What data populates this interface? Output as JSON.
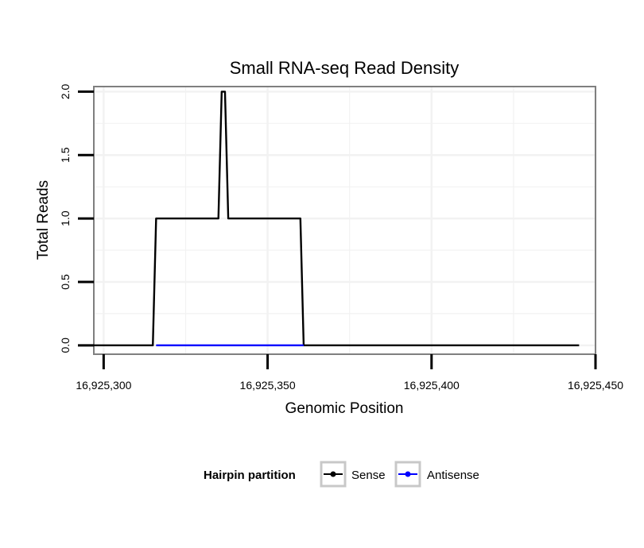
{
  "chart_data": {
    "type": "line",
    "title": "Small RNA-seq Read Density",
    "xlabel": "Genomic Position",
    "ylabel": "Total Reads",
    "xlim": [
      16925297,
      16925450
    ],
    "ylim": [
      -0.07,
      2.04
    ],
    "xticks": [
      16925300,
      16925350,
      16925400,
      16925450
    ],
    "xtick_labels": [
      "16,925,300",
      "16,925,350",
      "16,925,400",
      "16,925,450"
    ],
    "yticks": [
      0.0,
      0.5,
      1.0,
      1.5,
      2.0
    ],
    "ytick_labels": [
      "0.0",
      "0.5",
      "1.0",
      "1.5",
      "2.0"
    ],
    "grid": true,
    "legend_title": "Hairpin partition",
    "legend_position": "bottom",
    "series": [
      {
        "name": "Sense",
        "color": "#000000",
        "x": [
          16925296,
          16925315,
          16925316,
          16925335,
          16925336,
          16925337,
          16925338,
          16925360,
          16925361,
          16925445
        ],
        "y": [
          0,
          0,
          1,
          1,
          2,
          2,
          1,
          1,
          0,
          0
        ]
      },
      {
        "name": "Antisense",
        "color": "#0000ff",
        "x": [
          16925316,
          16925361
        ],
        "y": [
          0,
          0
        ]
      }
    ]
  }
}
